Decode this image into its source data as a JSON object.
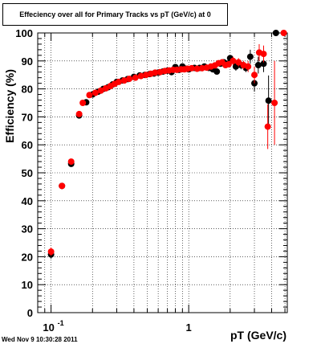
{
  "title": "Effeciency over all for Primary Tracks vs pT (GeV/c) at 0",
  "footer": "Wed Nov  9 10:30:28 2011",
  "chart_data": {
    "type": "scatter",
    "title": "Effeciency over all for Primary Tracks vs pT (GeV/c) at 0",
    "xlabel": "pT (GeV/c)",
    "ylabel": "Efficiency (%)",
    "xscale": "log",
    "xlim": [
      0.08,
      5.2
    ],
    "ylim": [
      0,
      100
    ],
    "grid": true,
    "x_ticks": [
      {
        "value": 0.1,
        "label": "10",
        "exp": "-1"
      },
      {
        "value": 1,
        "label": "1",
        "exp": ""
      }
    ],
    "y_ticks": [
      0,
      10,
      20,
      30,
      40,
      50,
      60,
      70,
      80,
      90,
      100
    ],
    "series": [
      {
        "color": "#000000",
        "points": [
          [
            0.1,
            20.8,
            1.5
          ],
          [
            0.12,
            45.3,
            0.6
          ],
          [
            0.14,
            53.2,
            0.6
          ],
          [
            0.16,
            70.5,
            0.6
          ],
          [
            0.18,
            75.2,
            0.6
          ],
          [
            0.2,
            78.0,
            0.6
          ],
          [
            0.22,
            79.0,
            0.6
          ],
          [
            0.24,
            80.0,
            0.6
          ],
          [
            0.26,
            80.6,
            0.6
          ],
          [
            0.28,
            81.6,
            0.6
          ],
          [
            0.3,
            82.5,
            0.6
          ],
          [
            0.33,
            83.0,
            0.6
          ],
          [
            0.36,
            83.5,
            0.6
          ],
          [
            0.4,
            84.3,
            0.6
          ],
          [
            0.44,
            84.8,
            0.6
          ],
          [
            0.48,
            85.0,
            0.6
          ],
          [
            0.52,
            85.3,
            0.6
          ],
          [
            0.56,
            85.5,
            0.6
          ],
          [
            0.6,
            85.8,
            0.6
          ],
          [
            0.65,
            86.2,
            0.6
          ],
          [
            0.7,
            86.5,
            0.6
          ],
          [
            0.75,
            86.0,
            0.6
          ],
          [
            0.8,
            87.8,
            0.6
          ],
          [
            0.85,
            86.8,
            0.6
          ],
          [
            0.9,
            88.0,
            0.6
          ],
          [
            0.95,
            87.2,
            0.6
          ],
          [
            1.0,
            87.0,
            0.6
          ],
          [
            1.1,
            87.5,
            0.6
          ],
          [
            1.2,
            87.5,
            0.6
          ],
          [
            1.3,
            88.0,
            0.6
          ],
          [
            1.4,
            87.5,
            0.6
          ],
          [
            1.5,
            87.0,
            0.6
          ],
          [
            1.6,
            86.2,
            0.6
          ],
          [
            1.7,
            89.0,
            1.0
          ],
          [
            1.8,
            89.5,
            1.0
          ],
          [
            1.9,
            89.0,
            1.0
          ],
          [
            2.0,
            91.0,
            1.0
          ],
          [
            2.2,
            88.0,
            1.5
          ],
          [
            2.4,
            88.5,
            1.5
          ],
          [
            2.6,
            87.5,
            1.5
          ],
          [
            2.8,
            91.5,
            2.5
          ],
          [
            3.0,
            82.0,
            3.0
          ],
          [
            3.2,
            88.5,
            3.0
          ],
          [
            3.5,
            89.0,
            3.0
          ],
          [
            3.8,
            75.8,
            9.0
          ],
          [
            4.3,
            100.0,
            0.5
          ]
        ]
      },
      {
        "color": "#ff0000",
        "points": [
          [
            0.1,
            21.8,
            1.5
          ],
          [
            0.12,
            45.3,
            0.6
          ],
          [
            0.14,
            54.0,
            0.6
          ],
          [
            0.16,
            71.0,
            0.6
          ],
          [
            0.17,
            75.0,
            0.6
          ],
          [
            0.19,
            77.8,
            0.6
          ],
          [
            0.21,
            78.6,
            0.6
          ],
          [
            0.23,
            79.4,
            0.6
          ],
          [
            0.25,
            80.2,
            0.6
          ],
          [
            0.27,
            81.0,
            0.6
          ],
          [
            0.29,
            81.8,
            0.6
          ],
          [
            0.31,
            82.5,
            0.6
          ],
          [
            0.34,
            83.0,
            0.6
          ],
          [
            0.37,
            83.6,
            0.6
          ],
          [
            0.41,
            84.0,
            0.6
          ],
          [
            0.45,
            84.6,
            0.6
          ],
          [
            0.49,
            85.0,
            0.6
          ],
          [
            0.53,
            85.4,
            0.6
          ],
          [
            0.57,
            85.8,
            0.6
          ],
          [
            0.62,
            86.0,
            0.6
          ],
          [
            0.67,
            86.4,
            0.6
          ],
          [
            0.72,
            86.6,
            0.6
          ],
          [
            0.77,
            86.8,
            0.6
          ],
          [
            0.82,
            86.8,
            0.6
          ],
          [
            0.88,
            87.0,
            0.6
          ],
          [
            0.93,
            87.0,
            0.6
          ],
          [
            0.98,
            87.2,
            0.6
          ],
          [
            1.05,
            87.4,
            0.6
          ],
          [
            1.15,
            87.2,
            0.6
          ],
          [
            1.25,
            87.4,
            0.6
          ],
          [
            1.35,
            87.6,
            0.6
          ],
          [
            1.45,
            88.0,
            0.6
          ],
          [
            1.55,
            88.4,
            0.6
          ],
          [
            1.65,
            89.2,
            1.0
          ],
          [
            1.75,
            89.5,
            1.0
          ],
          [
            1.85,
            88.5,
            1.0
          ],
          [
            1.95,
            88.8,
            1.0
          ],
          [
            2.1,
            90.0,
            1.5
          ],
          [
            2.3,
            89.5,
            1.5
          ],
          [
            2.5,
            88.5,
            1.5
          ],
          [
            2.7,
            88.0,
            2.0
          ],
          [
            3.0,
            85.0,
            3.0
          ],
          [
            3.25,
            93.0,
            3.0
          ],
          [
            3.5,
            92.5,
            3.0
          ],
          [
            3.75,
            66.5,
            8.0
          ],
          [
            4.2,
            75.0,
            15.0
          ],
          [
            4.9,
            100.0,
            0.5
          ]
        ]
      }
    ]
  }
}
